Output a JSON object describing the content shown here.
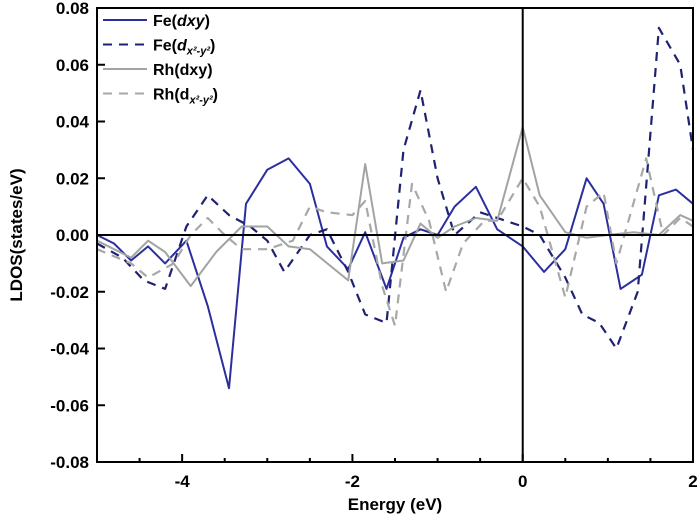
{
  "chart_data": {
    "type": "line",
    "title": "",
    "xlabel": "Energy (eV)",
    "ylabel": "LDOS(states/eV)",
    "xlim": [
      -5,
      2
    ],
    "ylim": [
      -0.08,
      0.08
    ],
    "xticks": [
      -4,
      -2,
      0,
      2
    ],
    "xtick_labels": [
      "-4",
      "-2",
      "0",
      "2"
    ],
    "yticks": [
      -0.08,
      -0.06,
      -0.04,
      -0.02,
      0.0,
      0.02,
      0.04,
      0.06,
      0.08
    ],
    "ytick_labels": [
      "-0.08",
      "-0.06",
      "-0.04",
      "-0.02",
      "0.00",
      "0.02",
      "0.04",
      "0.06",
      "0.08"
    ],
    "grid": false,
    "legend_placement": "top-left",
    "reference_lines": {
      "x": 0,
      "y": 0
    },
    "series": [
      {
        "name": "Fe(dxy)",
        "legend_base": "Fe(",
        "legend_orbital": "dxy",
        "color": "#2b2f9e",
        "style": "solid",
        "x": [
          -5,
          -4.8,
          -4.6,
          -4.4,
          -4.2,
          -3.95,
          -3.7,
          -3.45,
          -3.25,
          -3.0,
          -2.75,
          -2.5,
          -2.3,
          -2.05,
          -1.85,
          -1.6,
          -1.4,
          -1.2,
          -1.0,
          -0.8,
          -0.55,
          -0.3,
          0,
          0.25,
          0.5,
          0.75,
          0.95,
          1.15,
          1.4,
          1.6,
          1.8,
          2.0
        ],
        "y": [
          0,
          -0.003,
          -0.009,
          -0.004,
          -0.01,
          -0.002,
          -0.025,
          -0.054,
          0.011,
          0.023,
          0.027,
          0.018,
          -0.004,
          -0.012,
          0.001,
          -0.019,
          -0.001,
          0.002,
          0.0,
          0.01,
          0.017,
          0.002,
          -0.004,
          -0.013,
          -0.005,
          0.02,
          0.011,
          -0.019,
          -0.014,
          0.014,
          0.016,
          0.011
        ]
      },
      {
        "name": "Fe(dx2-y2)",
        "legend_base": "Fe(",
        "legend_orbital": "d",
        "legend_sub": "x²-y²",
        "color": "#1f2272",
        "style": "dashed",
        "x": [
          -5,
          -4.7,
          -4.45,
          -4.2,
          -3.95,
          -3.7,
          -3.45,
          -3.2,
          -3.0,
          -2.8,
          -2.5,
          -2.3,
          -2.05,
          -1.85,
          -1.6,
          -1.4,
          -1.2,
          -1.0,
          -0.8,
          -0.5,
          -0.2,
          0,
          0.2,
          0.5,
          0.7,
          0.9,
          1.1,
          1.35,
          1.6,
          1.85,
          2.0
        ],
        "y": [
          -0.003,
          -0.008,
          -0.016,
          -0.019,
          0.003,
          0.014,
          0.007,
          0.003,
          -0.002,
          -0.013,
          0.0,
          0.002,
          -0.013,
          -0.028,
          -0.031,
          0.03,
          0.051,
          0.02,
          0.0,
          0.008,
          0.005,
          0.003,
          0.0,
          -0.015,
          -0.028,
          -0.031,
          -0.04,
          -0.02,
          0.073,
          0.06,
          0.03
        ]
      },
      {
        "name": "Rh(dxy)",
        "legend_base": "Rh(",
        "legend_orbital": "dxy",
        "color": "#a0a5a3",
        "style": "solid",
        "x": [
          -5,
          -4.6,
          -4.4,
          -4.2,
          -3.9,
          -3.6,
          -3.3,
          -3.0,
          -2.75,
          -2.5,
          -2.05,
          -1.85,
          -1.65,
          -1.4,
          -1.2,
          -1.0,
          -0.8,
          -0.55,
          -0.3,
          0,
          0.2,
          0.5,
          0.75,
          1.0,
          1.3,
          1.6,
          1.85,
          2.0
        ],
        "y": [
          -0.002,
          -0.008,
          -0.002,
          -0.006,
          -0.018,
          -0.006,
          0.003,
          0.003,
          -0.004,
          -0.005,
          -0.016,
          0.025,
          -0.01,
          -0.009,
          0.004,
          -0.001,
          0.003,
          0.006,
          0.005,
          0.038,
          0.014,
          0.001,
          -0.001,
          0.0,
          0.001,
          0.0,
          0.007,
          0.005
        ]
      },
      {
        "name": "Rh(dx2-y2)",
        "legend_base": "Rh(",
        "legend_orbital": "d",
        "legend_sub": "x²-y²",
        "color": "#a8a8a8",
        "style": "dashed",
        "x": [
          -5,
          -4.6,
          -4.4,
          -4.1,
          -3.9,
          -3.7,
          -3.5,
          -3.3,
          -3.0,
          -2.7,
          -2.5,
          -2.3,
          -2.0,
          -1.85,
          -1.65,
          -1.5,
          -1.3,
          -1.1,
          -0.9,
          -0.7,
          -0.45,
          -0.3,
          0,
          0.2,
          0.5,
          0.75,
          0.95,
          1.1,
          1.45,
          1.65,
          1.85,
          2.0
        ],
        "y": [
          -0.005,
          -0.01,
          -0.015,
          -0.01,
          0.0,
          0.006,
          0.0,
          -0.005,
          -0.005,
          -0.002,
          0.01,
          0.008,
          0.007,
          0.012,
          -0.018,
          -0.032,
          0.018,
          0.005,
          -0.02,
          -0.003,
          0.005,
          0.005,
          0.02,
          0.01,
          -0.022,
          0.01,
          0.015,
          -0.01,
          0.027,
          0.0,
          0.006,
          0.003
        ]
      }
    ]
  }
}
